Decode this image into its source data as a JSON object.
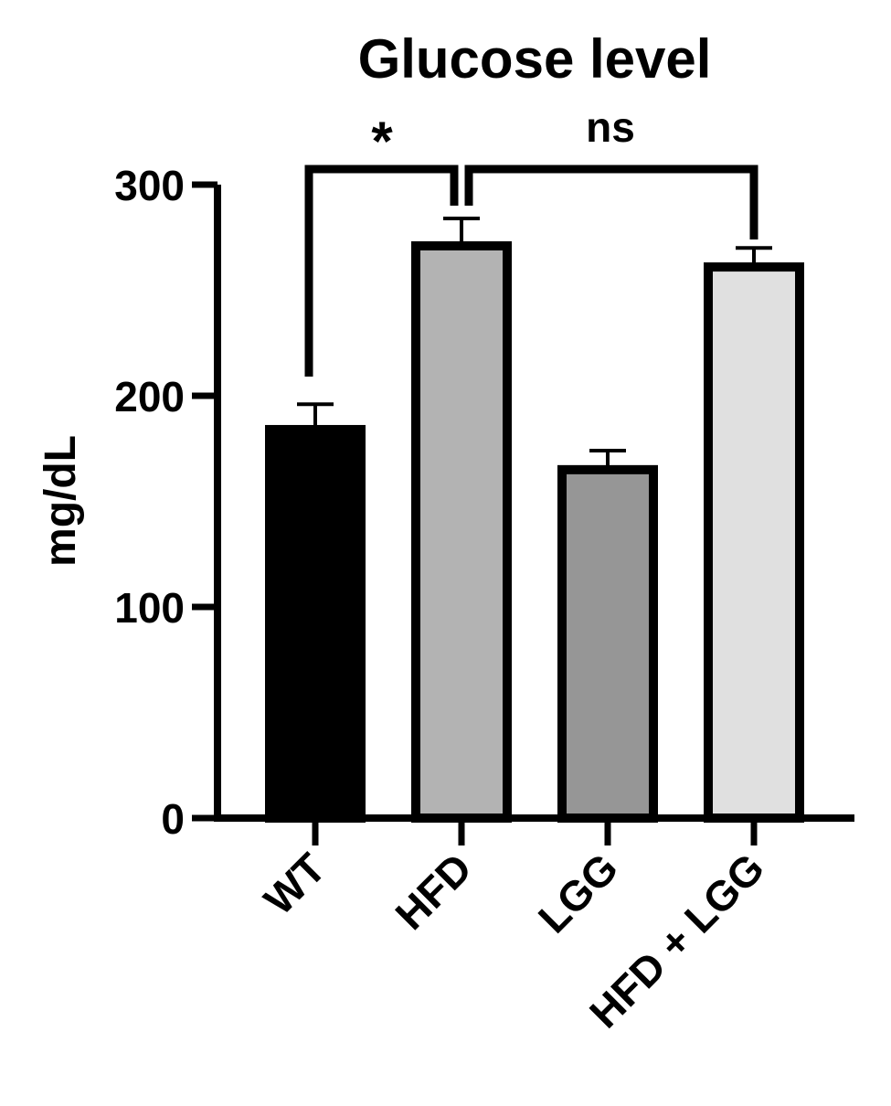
{
  "chart_data": {
    "type": "bar",
    "title": "Glucose level",
    "y_label": "mg/dL",
    "categories": [
      "WT",
      "HFD",
      "LGG",
      "HFD + LGG"
    ],
    "values": [
      184,
      271,
      165,
      261
    ],
    "errors": [
      12,
      13,
      9,
      9
    ],
    "colors": [
      "#000000",
      "#b3b3b3",
      "#969696",
      "#e0e0e0"
    ],
    "ylim": [
      0,
      300
    ],
    "yticks": [
      0,
      100,
      200,
      300
    ],
    "annotations": [
      "*",
      "ns"
    ]
  }
}
